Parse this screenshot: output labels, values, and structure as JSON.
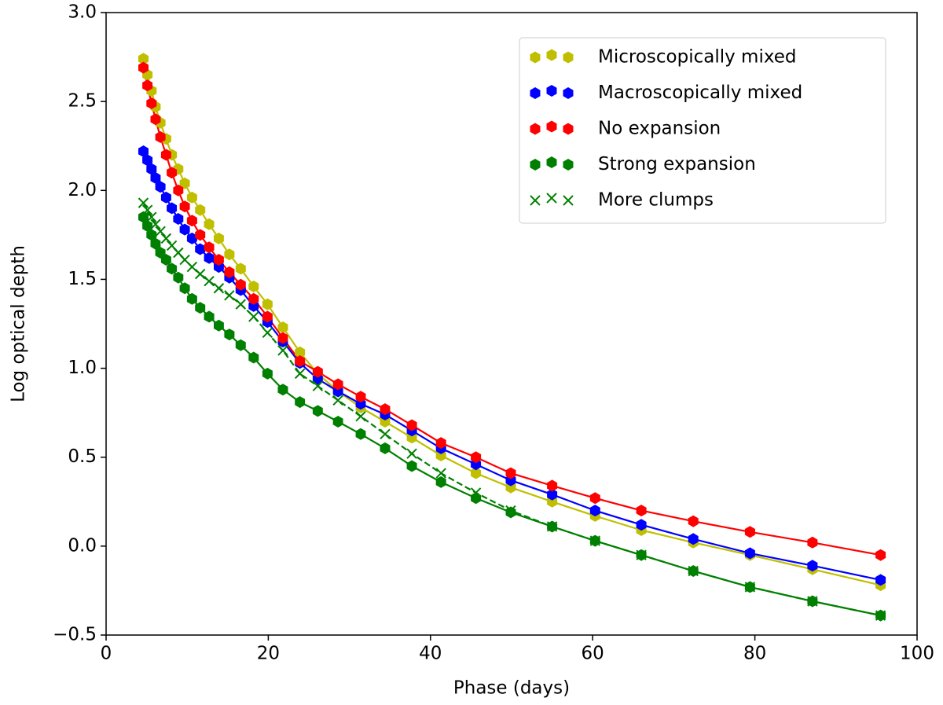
{
  "chart_data": {
    "type": "line",
    "xlabel": "Phase (days)",
    "ylabel": "Log optical depth",
    "x": [
      4.6,
      5.1,
      5.6,
      6.1,
      6.7,
      7.4,
      8.1,
      8.9,
      9.7,
      10.6,
      11.6,
      12.7,
      13.9,
      15.2,
      16.6,
      18.2,
      19.9,
      21.8,
      23.9,
      26.1,
      28.6,
      31.4,
      34.4,
      37.7,
      41.3,
      45.6,
      49.9,
      55,
      60.3,
      66,
      72.4,
      79.4,
      87.1,
      95.5
    ],
    "series": [
      {
        "name": "Microscopically mixed",
        "color": "#bfbf00",
        "marker": "hexagon",
        "dash": false,
        "values": [
          2.74,
          2.65,
          2.56,
          2.47,
          2.38,
          2.29,
          2.2,
          2.12,
          2.04,
          1.96,
          1.89,
          1.81,
          1.73,
          1.64,
          1.56,
          1.46,
          1.36,
          1.23,
          1.09,
          0.97,
          0.87,
          0.78,
          0.7,
          0.61,
          0.51,
          0.41,
          0.33,
          0.25,
          0.17,
          0.09,
          0.02,
          -0.05,
          -0.13,
          -0.22
        ]
      },
      {
        "name": "Macroscopically mixed",
        "color": "#0000ff",
        "marker": "hexagon",
        "dash": false,
        "values": [
          2.22,
          2.17,
          2.12,
          2.07,
          2.02,
          1.96,
          1.9,
          1.84,
          1.78,
          1.73,
          1.67,
          1.62,
          1.57,
          1.51,
          1.44,
          1.35,
          1.26,
          1.15,
          1.03,
          0.94,
          0.87,
          0.8,
          0.74,
          0.65,
          0.55,
          0.46,
          0.37,
          0.29,
          0.2,
          0.12,
          0.04,
          -0.04,
          -0.11,
          -0.19
        ]
      },
      {
        "name": "No expansion",
        "color": "#ff0000",
        "marker": "hexagon",
        "dash": false,
        "values": [
          2.69,
          2.59,
          2.49,
          2.4,
          2.3,
          2.2,
          2.1,
          2.0,
          1.91,
          1.83,
          1.75,
          1.68,
          1.61,
          1.54,
          1.47,
          1.39,
          1.29,
          1.17,
          1.04,
          0.98,
          0.91,
          0.84,
          0.77,
          0.68,
          0.58,
          0.5,
          0.41,
          0.34,
          0.27,
          0.2,
          0.14,
          0.08,
          0.02,
          -0.05
        ]
      },
      {
        "name": "Strong expansion",
        "color": "#008000",
        "marker": "hexagon",
        "dash": false,
        "values": [
          1.85,
          1.8,
          1.75,
          1.7,
          1.65,
          1.61,
          1.56,
          1.51,
          1.45,
          1.39,
          1.34,
          1.29,
          1.24,
          1.19,
          1.13,
          1.06,
          0.97,
          0.88,
          0.81,
          0.76,
          0.7,
          0.63,
          0.55,
          0.45,
          0.36,
          0.27,
          0.19,
          0.11,
          0.03,
          -0.05,
          -0.14,
          -0.23,
          -0.31,
          -0.39
        ]
      },
      {
        "name": "More clumps",
        "color": "#008000",
        "marker": "x",
        "dash": true,
        "values": [
          1.93,
          1.89,
          1.85,
          1.81,
          1.77,
          1.73,
          1.69,
          1.65,
          1.61,
          1.57,
          1.53,
          1.49,
          1.45,
          1.41,
          1.36,
          1.29,
          1.2,
          1.1,
          0.97,
          0.9,
          0.82,
          0.73,
          0.63,
          0.52,
          0.41,
          0.3,
          0.2,
          0.11,
          0.03,
          -0.05,
          -0.14,
          -0.23,
          -0.31,
          -0.39
        ]
      }
    ],
    "xlim": [
      0,
      100
    ],
    "xticks": [
      0,
      20,
      40,
      60,
      80,
      100
    ],
    "ylim": [
      -0.5,
      3.0
    ],
    "yticks": [
      {
        "value": -0.5,
        "label": "−0.5"
      },
      {
        "value": 0,
        "label": "0.0"
      },
      {
        "value": 0.5,
        "label": "0.5"
      },
      {
        "value": 1,
        "label": "1.0"
      },
      {
        "value": 1.5,
        "label": "1.5"
      },
      {
        "value": 2,
        "label": "2.0"
      },
      {
        "value": 2.5,
        "label": "2.5"
      },
      {
        "value": 3,
        "label": "3.0"
      }
    ],
    "grid": false,
    "legend": "upper right"
  }
}
